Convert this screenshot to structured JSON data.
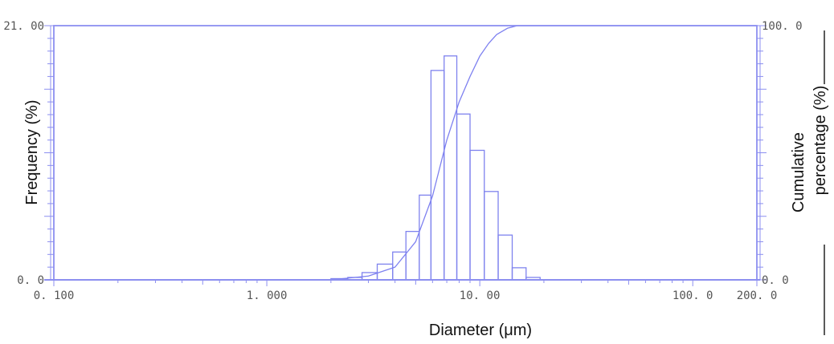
{
  "chart_data": {
    "type": "bar",
    "title": "",
    "xlabel": "Diameter (μm)",
    "ylabel": "Frequency (%)",
    "y2label_line1": "Cumulative",
    "y2label_line2": "percentage (%)",
    "x_scale": "log",
    "xlim": [
      0.1,
      200
    ],
    "ylim": [
      0,
      21
    ],
    "y2lim": [
      0,
      100
    ],
    "x_tick_labels": [
      {
        "value": 0.1,
        "label": "0. 100"
      },
      {
        "value": 1.0,
        "label": "1. 000"
      },
      {
        "value": 10.0,
        "label": "10. 00"
      },
      {
        "value": 100.0,
        "label": "100. 0"
      },
      {
        "value": 200.0,
        "label": "200. 0"
      }
    ],
    "y_tick_labels": [
      {
        "value": 0,
        "label": "0. 0"
      },
      {
        "value": 21,
        "label": "21. 00"
      }
    ],
    "y2_tick_labels": [
      {
        "value": 0,
        "label": "0. 0"
      },
      {
        "value": 100,
        "label": "100. 0"
      }
    ],
    "bins": [
      {
        "lo": 2.0,
        "hi": 2.4,
        "freq": 0.1
      },
      {
        "lo": 2.4,
        "hi": 2.8,
        "freq": 0.2
      },
      {
        "lo": 2.8,
        "hi": 3.3,
        "freq": 0.6
      },
      {
        "lo": 3.3,
        "hi": 3.9,
        "freq": 1.3
      },
      {
        "lo": 3.9,
        "hi": 4.5,
        "freq": 2.3
      },
      {
        "lo": 4.5,
        "hi": 5.2,
        "freq": 4.0
      },
      {
        "lo": 5.2,
        "hi": 5.9,
        "freq": 7.0
      },
      {
        "lo": 5.9,
        "hi": 6.8,
        "freq": 17.3
      },
      {
        "lo": 6.8,
        "hi": 7.8,
        "freq": 18.5
      },
      {
        "lo": 7.8,
        "hi": 9.0,
        "freq": 13.7
      },
      {
        "lo": 9.0,
        "hi": 10.5,
        "freq": 10.7
      },
      {
        "lo": 10.5,
        "hi": 12.2,
        "freq": 7.3
      },
      {
        "lo": 12.2,
        "hi": 14.2,
        "freq": 3.7
      },
      {
        "lo": 14.2,
        "hi": 16.5,
        "freq": 1.0
      },
      {
        "lo": 16.5,
        "hi": 19.2,
        "freq": 0.2
      }
    ],
    "cumulative": [
      {
        "x": 2.0,
        "y": 0.0
      },
      {
        "x": 3.0,
        "y": 1.5
      },
      {
        "x": 4.0,
        "y": 5.0
      },
      {
        "x": 5.0,
        "y": 15.0
      },
      {
        "x": 6.0,
        "y": 33.0
      },
      {
        "x": 7.0,
        "y": 55.0
      },
      {
        "x": 8.0,
        "y": 70.0
      },
      {
        "x": 9.0,
        "y": 80.0
      },
      {
        "x": 10.0,
        "y": 88.0
      },
      {
        "x": 11.0,
        "y": 93.0
      },
      {
        "x": 12.0,
        "y": 96.5
      },
      {
        "x": 13.5,
        "y": 99.0
      },
      {
        "x": 15.0,
        "y": 100.0
      },
      {
        "x": 200.0,
        "y": 100.0
      }
    ],
    "grid": false,
    "legend": "none",
    "colors": {
      "frame": "#8c8ff0",
      "bars": "#7f83ee",
      "curve": "#7d80f0",
      "text": "#111111"
    }
  }
}
